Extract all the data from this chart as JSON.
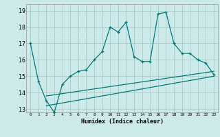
{
  "xlabel": "Humidex (Indice chaleur)",
  "bg_color": "#cceaea",
  "grid_color": "#aacccc",
  "line_color": "#007878",
  "ylim": [
    12.8,
    19.4
  ],
  "xlim": [
    -0.5,
    23.5
  ],
  "yticks": [
    13,
    14,
    15,
    16,
    17,
    18,
    19
  ],
  "xticks": [
    0,
    1,
    2,
    3,
    4,
    5,
    6,
    7,
    8,
    9,
    10,
    11,
    12,
    13,
    14,
    15,
    16,
    17,
    18,
    19,
    20,
    21,
    22,
    23
  ],
  "main_line_x": [
    0,
    1,
    2,
    3,
    4,
    5,
    6,
    7,
    8,
    9,
    10,
    11,
    12,
    13,
    14,
    15,
    16,
    17,
    18,
    19,
    20,
    21,
    22,
    23
  ],
  "main_line_y": [
    17.0,
    14.7,
    13.5,
    12.8,
    14.5,
    15.0,
    15.3,
    15.4,
    16.0,
    16.5,
    18.0,
    17.7,
    18.3,
    16.2,
    15.9,
    15.9,
    18.8,
    18.9,
    17.0,
    16.4,
    16.4,
    16.0,
    15.8,
    15.1
  ],
  "line2_x": [
    2,
    23
  ],
  "line2_y": [
    13.8,
    15.3
  ],
  "line3_x": [
    2,
    23
  ],
  "line3_y": [
    13.2,
    15.0
  ]
}
